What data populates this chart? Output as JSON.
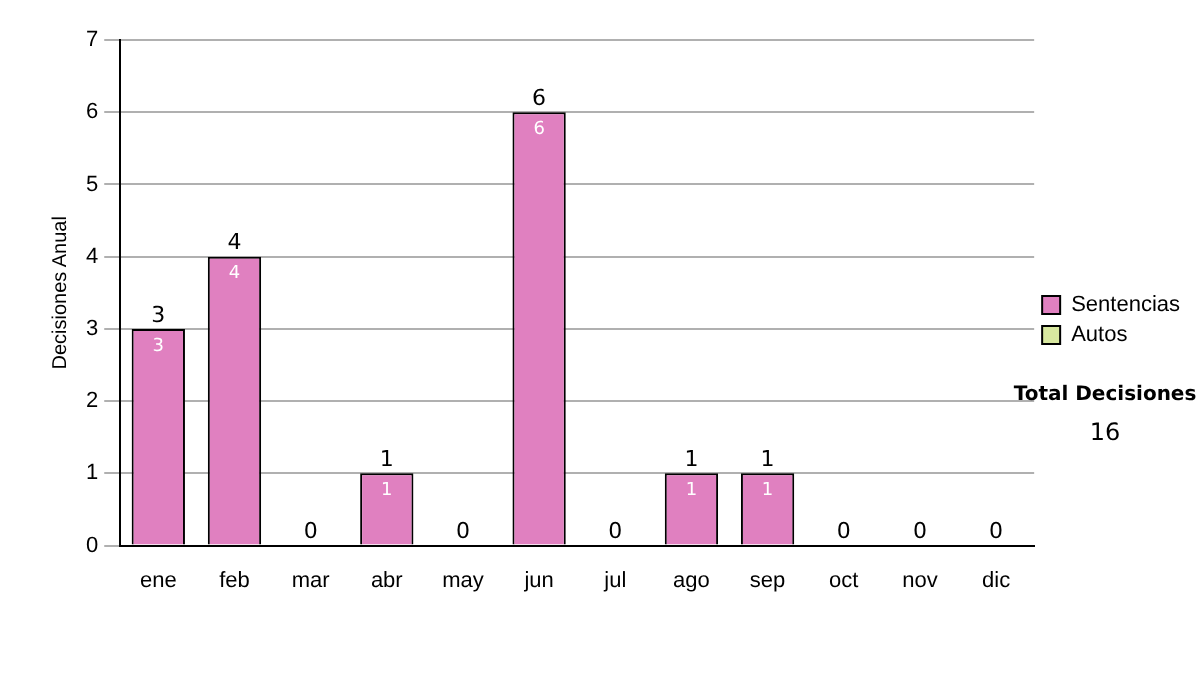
{
  "chart_data": {
    "type": "bar",
    "stacked": true,
    "ylabel": "Decisiones Anual",
    "categories": [
      "ene",
      "feb",
      "mar",
      "abr",
      "may",
      "jun",
      "jul",
      "ago",
      "sep",
      "oct",
      "nov",
      "dic"
    ],
    "series": [
      {
        "name": "Sentencias",
        "color": "#e080c0",
        "values": [
          3,
          4,
          0,
          1,
          0,
          6,
          0,
          1,
          1,
          0,
          0,
          0
        ],
        "value_labels": [
          "3",
          "4",
          null,
          "1",
          null,
          "6",
          null,
          "1",
          "1",
          null,
          null,
          null
        ]
      },
      {
        "name": "Autos",
        "color": "#d8e8a0",
        "values": [
          0,
          0,
          0,
          0,
          0,
          0,
          0,
          0,
          0,
          0,
          0,
          0
        ]
      }
    ],
    "totals": [
      "3",
      "4",
      "0",
      "1",
      "0",
      "6",
      "0",
      "1",
      "1",
      "0",
      "0",
      "0"
    ],
    "ylim": [
      0,
      7
    ],
    "yticks": [
      0,
      1,
      2,
      3,
      4,
      5,
      6,
      7
    ],
    "grid": "y",
    "legend": "right",
    "annotations": [
      "Total Decisiones",
      "16"
    ]
  }
}
